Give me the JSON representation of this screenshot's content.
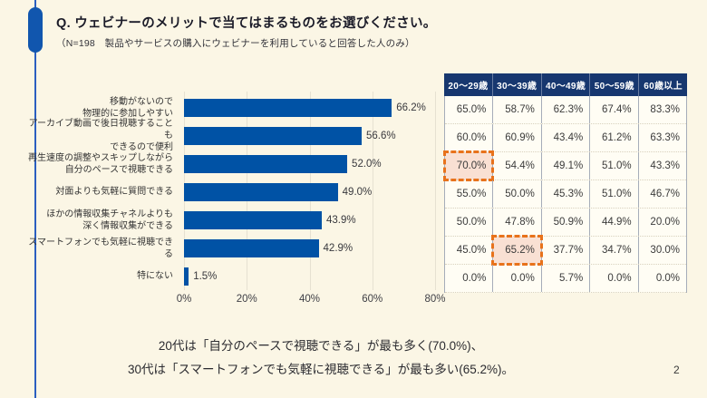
{
  "page": {
    "background": "#FBF6E5",
    "accent_color": "#1156AE",
    "page_number": "2"
  },
  "header": {
    "title": "Q. ウェビナーのメリットで当てはまるものをお選びください。",
    "subtitle": "（N=198　製品やサービスの購入にウェビナーを利用していると回答した人のみ）"
  },
  "chart_data": {
    "type": "bar",
    "orientation": "horizontal",
    "title": "",
    "xlabel": "",
    "ylabel": "",
    "xlim": [
      0,
      80
    ],
    "x_ticks": [
      "0%",
      "20%",
      "40%",
      "60%",
      "80%"
    ],
    "grid": true,
    "bar_color": "#0052A5",
    "categories": [
      "移動がないので\n物理的に参加しやすい",
      "アーカイブ動画で後日視聴することも\nできるので便利",
      "再生速度の調整やスキップしながら\n自分のペースで視聴できる",
      "対面よりも気軽に質問できる",
      "ほかの情報収集チャネルよりも\n深く情報収集ができる",
      "スマートフォンでも気軽に視聴できる",
      "特にない"
    ],
    "values": [
      66.2,
      56.6,
      52.0,
      49.0,
      43.9,
      42.9,
      1.5
    ],
    "value_labels": [
      "66.2%",
      "56.6%",
      "52.0%",
      "49.0%",
      "43.9%",
      "42.9%",
      "1.5%"
    ]
  },
  "table": {
    "columns": [
      "20〜29歳",
      "30〜39歳",
      "40〜49歳",
      "50〜59歳",
      "60歳以上"
    ],
    "rows": [
      [
        "65.0%",
        "58.7%",
        "62.3%",
        "67.4%",
        "83.3%"
      ],
      [
        "60.0%",
        "60.9%",
        "43.4%",
        "61.2%",
        "63.3%"
      ],
      [
        "70.0%",
        "54.4%",
        "49.1%",
        "51.0%",
        "43.3%"
      ],
      [
        "55.0%",
        "50.0%",
        "45.3%",
        "51.0%",
        "46.7%"
      ],
      [
        "50.0%",
        "47.8%",
        "50.9%",
        "44.9%",
        "20.0%"
      ],
      [
        "45.0%",
        "65.2%",
        "37.7%",
        "34.7%",
        "30.0%"
      ],
      [
        "0.0%",
        "0.0%",
        "5.7%",
        "0.0%",
        "0.0%"
      ]
    ],
    "highlighted_cells": [
      {
        "row": 2,
        "col": 0
      },
      {
        "row": 5,
        "col": 1
      }
    ],
    "header_bg": "#17376F",
    "highlight_border_color": "#E8721B",
    "highlight_bg": "#F9E0D3"
  },
  "summary": {
    "line1": "20代は「自分のペースで視聴できる」が最も多く(70.0%)、",
    "line2": "30代は「スマートフォンでも気軽に視聴できる」が最も多い(65.2%)。"
  }
}
